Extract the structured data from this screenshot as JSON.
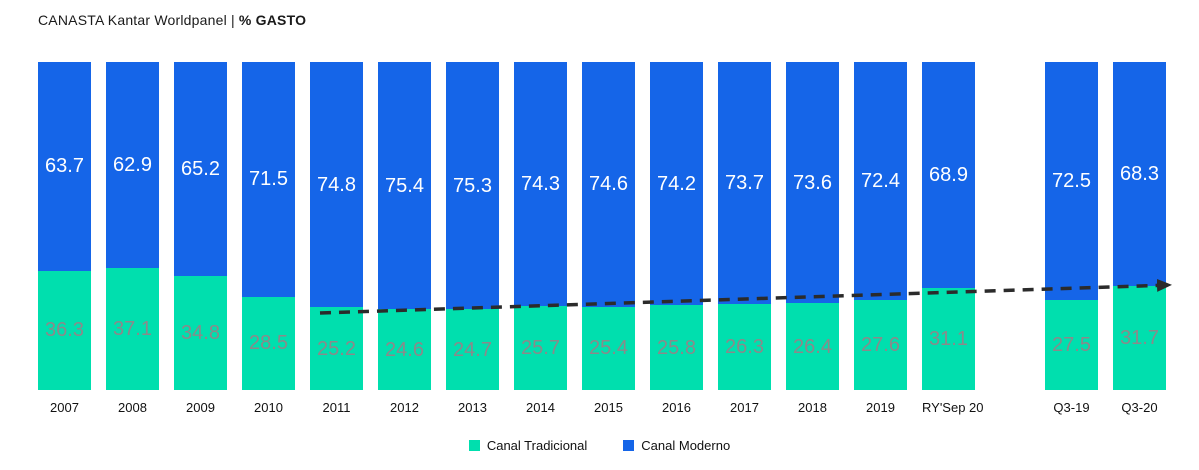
{
  "title": {
    "prefix": "CANASTA Kantar Worldpanel | ",
    "emphasis": "% GASTO"
  },
  "legend": {
    "items": [
      {
        "label": "Canal Tradicional",
        "color": "#00dfae"
      },
      {
        "label": "Canal Moderno",
        "color": "#1565e8"
      }
    ]
  },
  "chart_data": {
    "type": "bar",
    "stacked": true,
    "unit": "%",
    "ylim": [
      0,
      100
    ],
    "grid": false,
    "legend_position": "bottom",
    "categories": [
      "2007",
      "2008",
      "2009",
      "2010",
      "2011",
      "2012",
      "2013",
      "2014",
      "2015",
      "2016",
      "2017",
      "2018",
      "2019",
      "RY'Sep 20",
      "Q3-19",
      "Q3-20"
    ],
    "series": [
      {
        "name": "Canal Tradicional",
        "color": "#00dfae",
        "label_color": "#8a8a8a",
        "values": [
          36.3,
          37.1,
          34.8,
          28.5,
          25.2,
          24.6,
          24.7,
          25.7,
          25.4,
          25.8,
          26.3,
          26.4,
          27.6,
          31.1,
          27.5,
          31.7
        ]
      },
      {
        "name": "Canal Moderno",
        "color": "#1565e8",
        "label_color": "#ffffff",
        "values": [
          63.7,
          62.9,
          65.2,
          71.5,
          74.8,
          75.4,
          75.3,
          74.3,
          74.6,
          74.2,
          73.7,
          73.6,
          72.4,
          68.9,
          72.5,
          68.3
        ]
      }
    ],
    "annotations": [
      {
        "type": "dashed-arrow",
        "description": "black dashed trend arrow rising from 2011 across to Q3-20",
        "color": "#2b2b2b"
      }
    ]
  }
}
